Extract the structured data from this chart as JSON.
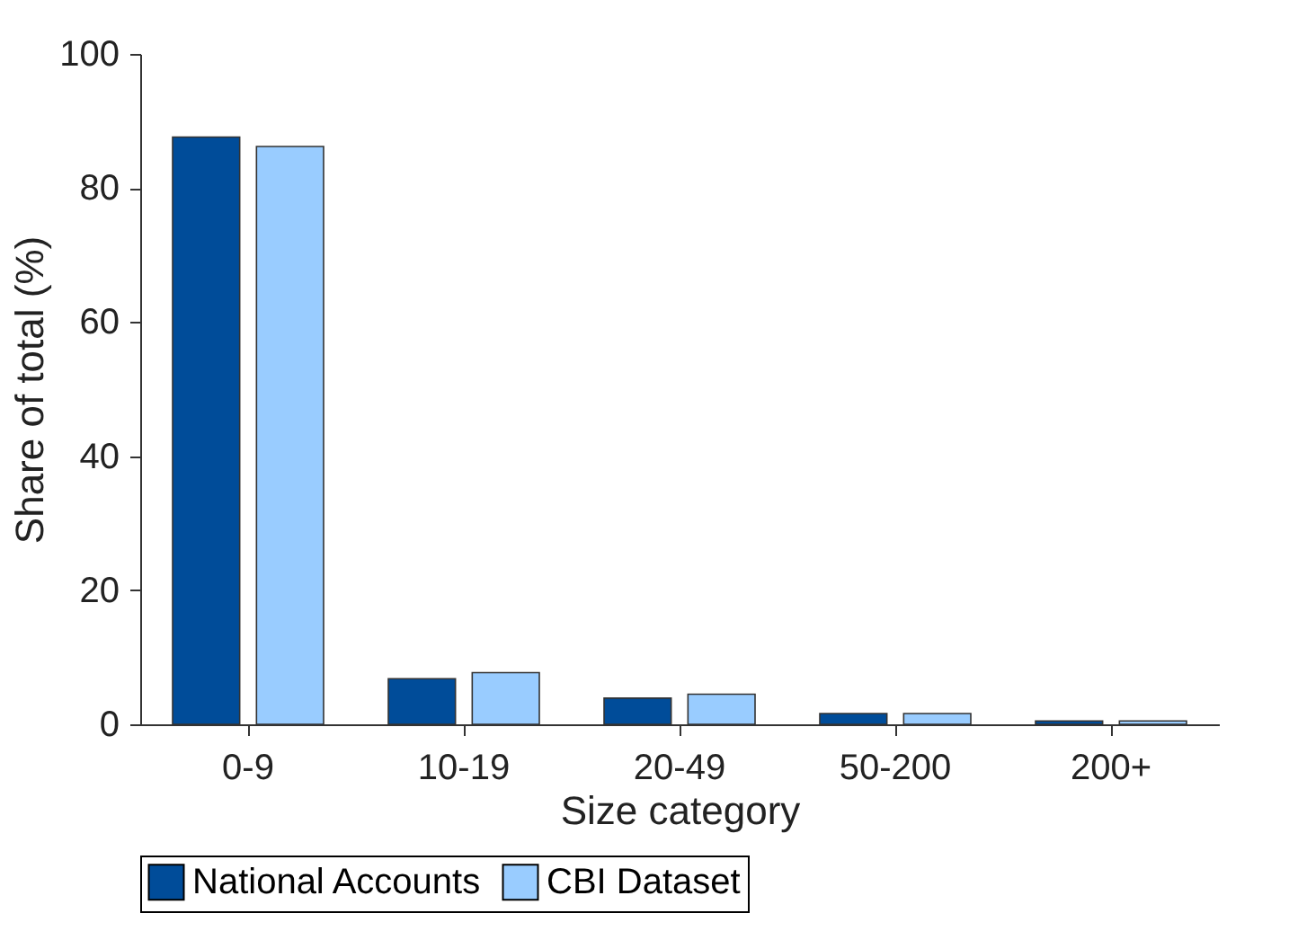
{
  "chart_data": {
    "type": "bar",
    "xlabel": "Size category",
    "ylabel": "Share of total (%)",
    "categories": [
      "0-9",
      "10-19",
      "20-49",
      "50-200",
      "200+"
    ],
    "series": [
      {
        "name": "National Accounts",
        "color": "#004c99",
        "values": [
          87.6,
          6.8,
          3.9,
          1.6,
          0.5
        ]
      },
      {
        "name": "CBI Dataset",
        "color": "#99ccff",
        "values": [
          86.2,
          7.7,
          4.5,
          1.6,
          0.5
        ]
      }
    ],
    "ylim": [
      0,
      100
    ],
    "yticks": [
      0,
      20,
      40,
      60,
      80,
      100
    ],
    "grid": false,
    "legend": "bottom"
  }
}
